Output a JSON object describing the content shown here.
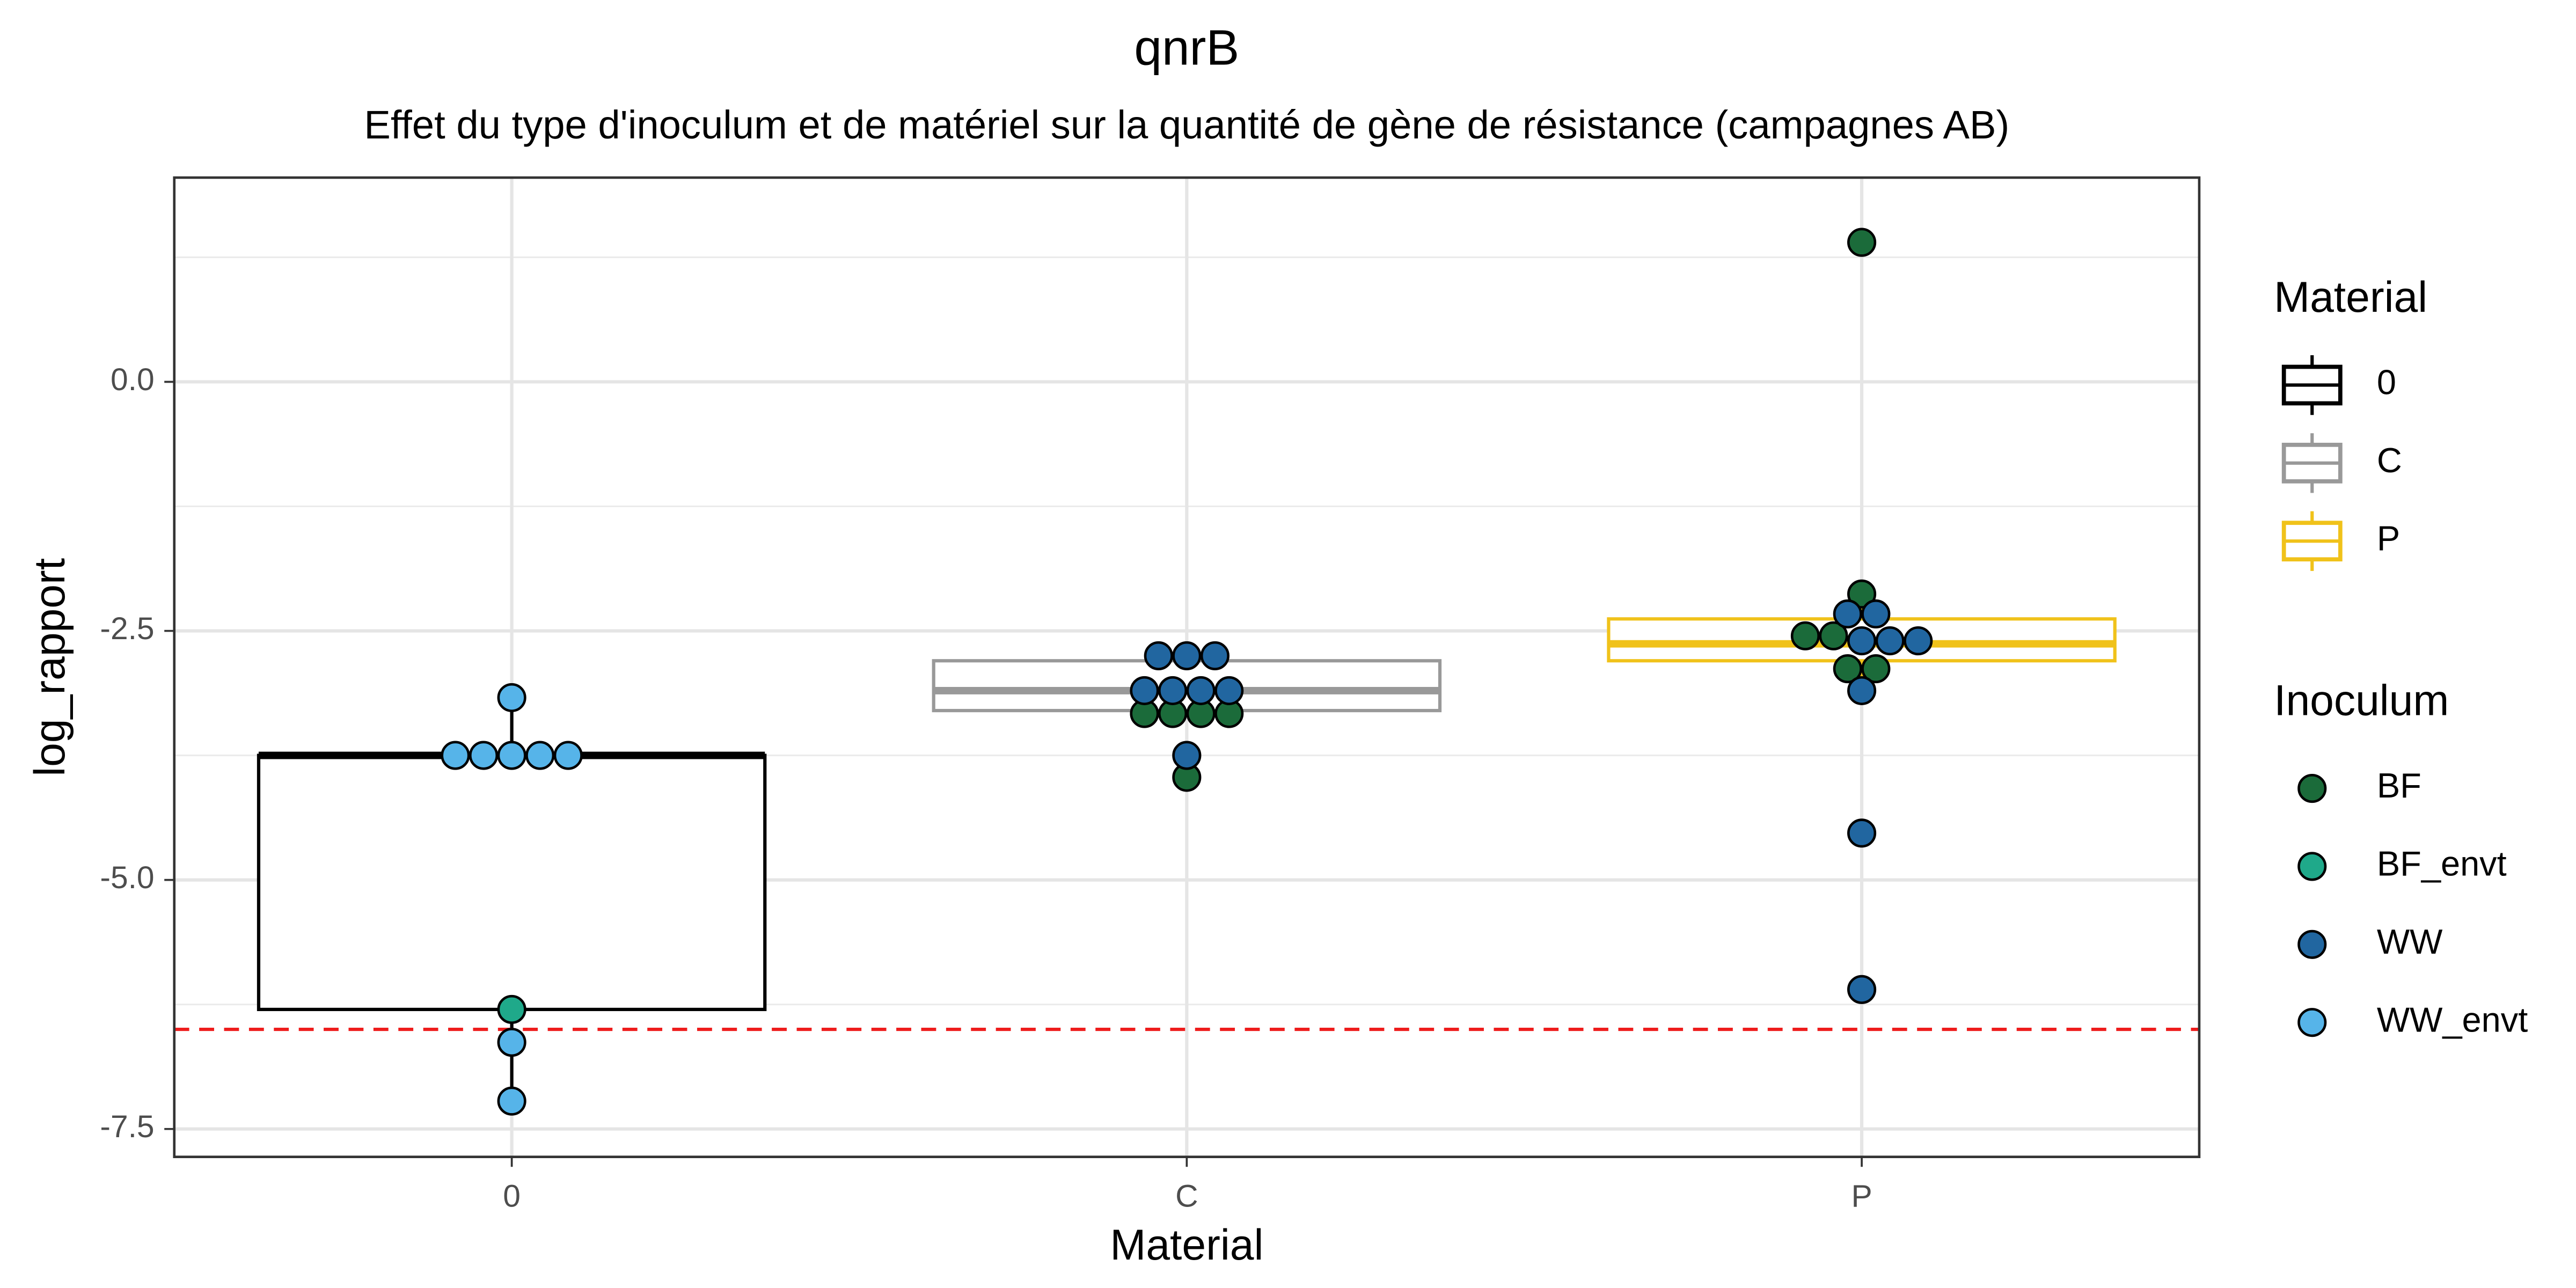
{
  "chart_data": {
    "type": "box",
    "title": "qnrB",
    "subtitle": "Effet du type d'inoculum et de matériel sur la quantité de gène de résistance (campagnes AB)",
    "x_label": "Material",
    "y_label": "log_rapport",
    "categories": [
      "0",
      "C",
      "P"
    ],
    "box_legend_title": "Material",
    "box_colors": [
      "#000000",
      "#999999",
      "#f0c21a"
    ],
    "boxes": [
      {
        "whisker_low": -7.22,
        "q1": -6.3,
        "median": -3.75,
        "q3": -3.75,
        "whisker_high": -3.17
      },
      {
        "whisker_low": -3.33,
        "q1": -3.3,
        "median": -3.1,
        "q3": -2.8,
        "whisker_high": -2.75
      },
      {
        "whisker_low": -3.1,
        "q1": -2.8,
        "median": -2.63,
        "q3": -2.38,
        "whisker_high": -2.13
      }
    ],
    "point_legend_title": "Inoculum",
    "series": [
      {
        "name": "BF",
        "color": "#1b6b3a",
        "categories": [
          "C",
          "C",
          "C",
          "C",
          "C",
          "P",
          "P",
          "P",
          "P",
          "P",
          "P"
        ],
        "values": [
          -3.33,
          -3.33,
          -3.33,
          -3.33,
          -3.97,
          1.4,
          -2.13,
          -2.55,
          -2.55,
          -2.88,
          -2.88
        ]
      },
      {
        "name": "BF_envt",
        "color": "#1fa98a",
        "categories": [
          "0"
        ],
        "values": [
          -6.3
        ]
      },
      {
        "name": "WW",
        "color": "#2166a0",
        "categories": [
          "C",
          "C",
          "C",
          "C",
          "C",
          "C",
          "C",
          "C",
          "P",
          "P",
          "P",
          "P",
          "P",
          "P",
          "P",
          "P"
        ],
        "values": [
          -2.75,
          -2.75,
          -2.75,
          -3.1,
          -3.1,
          -3.1,
          -3.1,
          -3.75,
          -2.33,
          -2.33,
          -2.6,
          -2.6,
          -2.6,
          -3.1,
          -4.53,
          -6.1
        ]
      },
      {
        "name": "WW_envt",
        "color": "#56b4e9",
        "categories": [
          "0",
          "0",
          "0",
          "0",
          "0",
          "0",
          "0",
          "0"
        ],
        "values": [
          -3.17,
          -3.75,
          -3.75,
          -3.75,
          -3.75,
          -3.75,
          -6.63,
          -7.22
        ]
      }
    ],
    "threshold": -6.5,
    "threshold_color": "#ee1c1c",
    "ylim": [
      -7.78,
      2.05
    ],
    "yticks": [
      {
        "value": 0,
        "label": "0.0"
      },
      -2.5,
      {
        "value": -5,
        "label": "-5.0"
      },
      {
        "value": -7.5,
        "label": "-7.5"
      }
    ],
    "minor_yticks": [
      1.25,
      -1.25,
      -3.75,
      -6.25
    ],
    "grid": true
  }
}
